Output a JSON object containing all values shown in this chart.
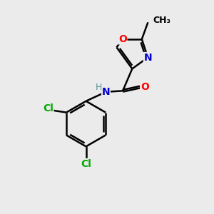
{
  "bg_color": "#ebebeb",
  "bond_color": "#000000",
  "atom_colors": {
    "O": "#ff0000",
    "N": "#0000cc",
    "Cl": "#00aa00",
    "C": "#000000",
    "H": "#5a9090"
  },
  "font_size": 10,
  "lw": 1.8
}
